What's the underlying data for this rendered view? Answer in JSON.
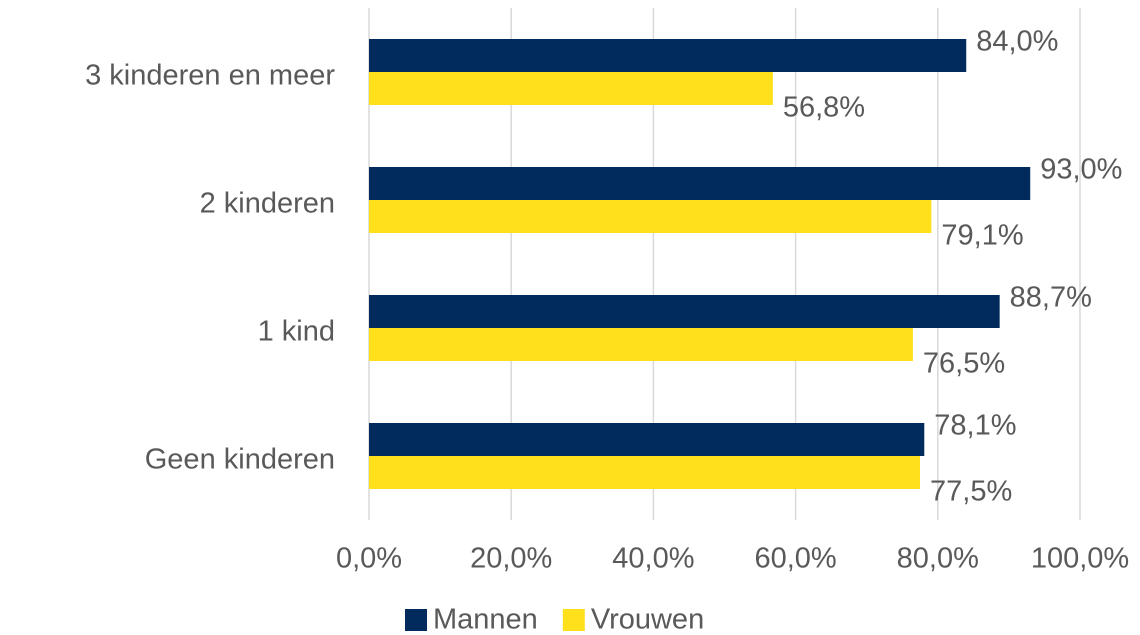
{
  "chart_data": {
    "type": "bar",
    "orientation": "horizontal",
    "categories": [
      "3 kinderen en meer",
      "2 kinderen",
      "1 kind",
      "Geen kinderen"
    ],
    "series": [
      {
        "name": "Mannen",
        "color": "#002b5c",
        "values": [
          84.0,
          93.0,
          88.7,
          78.1
        ],
        "value_labels": [
          "84,0%",
          "93,0%",
          "88,7%",
          "78,1%"
        ]
      },
      {
        "name": "Vrouwen",
        "color": "#ffe01b",
        "values": [
          56.8,
          79.1,
          76.5,
          77.5
        ],
        "value_labels": [
          "56,8%",
          "79,1%",
          "76,5%",
          "77,5%"
        ]
      }
    ],
    "xlim": [
      0,
      100
    ],
    "xticks": [
      {
        "value": 0,
        "label": "0,0%"
      },
      {
        "value": 20,
        "label": "20,0%"
      },
      {
        "value": 40,
        "label": "40,0%"
      },
      {
        "value": 60,
        "label": "60,0%"
      },
      {
        "value": 80,
        "label": "80,0%"
      },
      {
        "value": 100,
        "label": "100,0%"
      }
    ],
    "grid": true,
    "legend": "bottom"
  }
}
